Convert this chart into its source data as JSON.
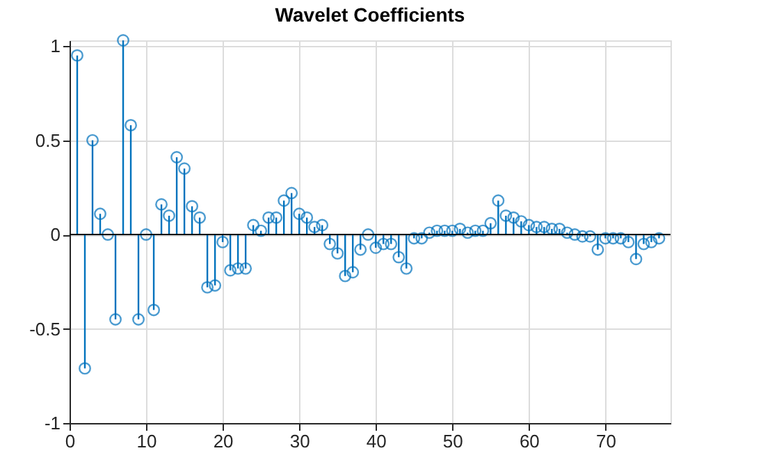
{
  "chart_data": {
    "type": "lollipop",
    "title": "Wavelet Coefficients",
    "x": [
      1,
      2,
      3,
      4,
      5,
      6,
      7,
      8,
      9,
      10,
      11,
      12,
      13,
      14,
      15,
      16,
      17,
      18,
      19,
      20,
      21,
      22,
      23,
      24,
      25,
      26,
      27,
      28,
      29,
      30,
      31,
      32,
      33,
      34,
      35,
      36,
      37,
      38,
      39,
      40,
      41,
      42,
      43,
      44,
      45,
      46,
      47,
      48,
      49,
      50,
      51,
      52,
      53,
      54,
      55,
      56,
      57,
      58,
      59,
      60,
      61,
      62,
      63,
      64,
      65,
      66,
      67,
      68,
      69,
      70,
      71,
      72,
      73,
      74,
      75,
      76,
      77
    ],
    "series": [
      {
        "color": "#0072bd",
        "values": [
          0.95,
          -0.71,
          0.5,
          0.11,
          0,
          -0.45,
          1.03,
          0.58,
          -0.45,
          0,
          -0.4,
          0.16,
          0.1,
          0.41,
          0.35,
          0.15,
          0.09,
          -0.28,
          -0.27,
          -0.04,
          -0.19,
          -0.18,
          -0.18,
          0.05,
          0.02,
          0.09,
          0.09,
          0.18,
          0.22,
          0.11,
          0.09,
          0.04,
          0.05,
          -0.05,
          -0.1,
          -0.22,
          -0.2,
          -0.08,
          0,
          -0.07,
          -0.05,
          -0.05,
          -0.12,
          -0.18,
          -0.02,
          -0.02,
          0.01,
          0.02,
          0.02,
          0.02,
          0.03,
          0.01,
          0.02,
          0.02,
          0.06,
          0.18,
          0.1,
          0.09,
          0.07,
          0.05,
          0.04,
          0.04,
          0.03,
          0.03,
          0.01,
          0,
          -0.01,
          -0.01,
          -0.08,
          -0.02,
          -0.02,
          -0.02,
          -0.04,
          -0.13,
          -0.05,
          -0.04,
          -0.02
        ]
      }
    ],
    "xlim": [
      0,
      78.5
    ],
    "ylim": [
      -1,
      1.03
    ],
    "xticks": [
      0,
      10,
      20,
      30,
      40,
      50,
      60,
      70
    ],
    "yticks": [
      -1,
      -0.5,
      0,
      0.5,
      1
    ],
    "ref_lines": [
      {
        "axis": "y",
        "value": 0,
        "color": "#000000"
      }
    ],
    "grid": true,
    "marker": "circle",
    "line_style": "solid"
  }
}
